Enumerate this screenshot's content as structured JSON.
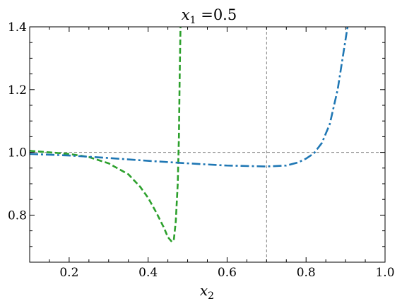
{
  "chart_data": {
    "type": "line",
    "title_var": "x",
    "title_sub": "1",
    "title_rest": " =0.5",
    "xlabel_var": "x",
    "xlabel_sub": "2",
    "ylabel": "",
    "xlim": [
      0.1,
      1.0
    ],
    "ylim": [
      0.65,
      1.4
    ],
    "xticks": [
      0.2,
      0.4,
      0.6,
      0.8,
      1.0
    ],
    "xtick_labels": [
      "0.2",
      "0.4",
      "0.6",
      "0.8",
      "1.0"
    ],
    "yticks": [
      0.8,
      1.0,
      1.2,
      1.4
    ],
    "ytick_labels": [
      "0.8",
      "1.0",
      "1.2",
      "1.4"
    ],
    "grid": false,
    "reference_lines": [
      {
        "orientation": "horizontal",
        "value": 1.0,
        "color": "#808080",
        "style": "dashed"
      },
      {
        "orientation": "vertical",
        "value": 0.7,
        "color": "#808080",
        "style": "dashed"
      }
    ],
    "series": [
      {
        "color": "#2ca02c",
        "style": "dashed",
        "x": [
          0.1,
          0.15,
          0.2,
          0.25,
          0.3,
          0.35,
          0.38,
          0.4,
          0.42,
          0.44,
          0.45,
          0.46,
          0.465,
          0.47,
          0.475,
          0.478,
          0.48,
          0.482
        ],
        "y": [
          1.005,
          1.0,
          0.995,
          0.985,
          0.965,
          0.93,
          0.89,
          0.855,
          0.81,
          0.76,
          0.73,
          0.715,
          0.72,
          0.78,
          0.9,
          1.05,
          1.25,
          1.4
        ]
      },
      {
        "color": "#1f77b4",
        "style": "dashdot",
        "x": [
          0.1,
          0.2,
          0.3,
          0.4,
          0.5,
          0.6,
          0.7,
          0.75,
          0.78,
          0.8,
          0.82,
          0.84,
          0.86,
          0.88,
          0.9,
          0.905
        ],
        "y": [
          0.995,
          0.99,
          0.982,
          0.973,
          0.965,
          0.958,
          0.955,
          0.958,
          0.968,
          0.98,
          0.997,
          1.03,
          1.09,
          1.2,
          1.36,
          1.4
        ]
      }
    ]
  }
}
